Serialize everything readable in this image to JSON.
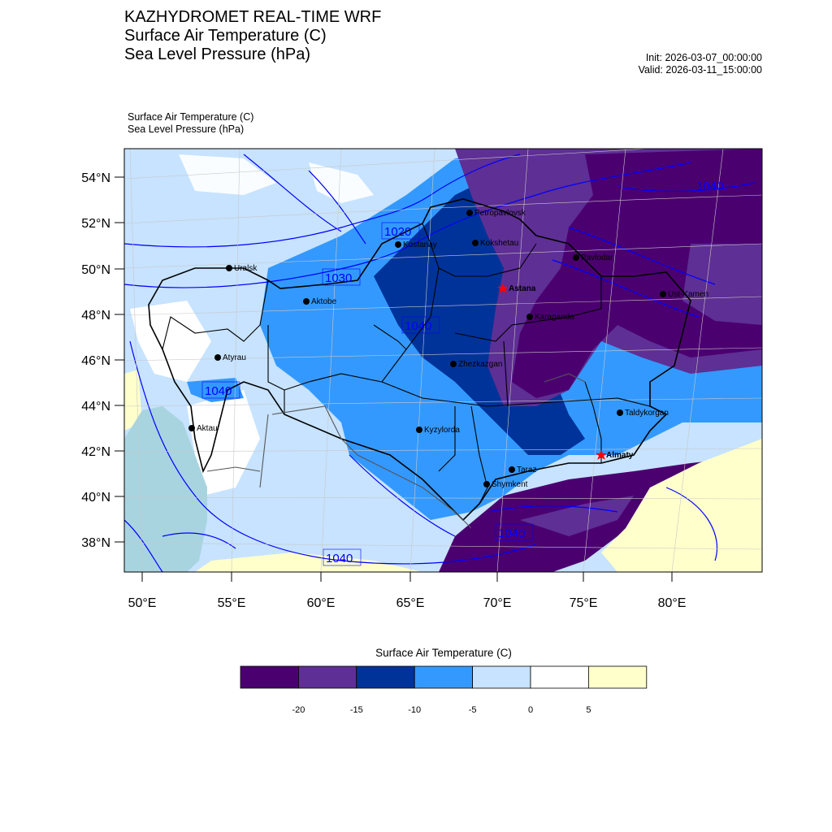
{
  "titles": {
    "line1": "KAZHYDROMET REAL-TIME WRF",
    "line2": "Surface Air Temperature  (C)",
    "line3": "Sea Level Pressure  (hPa)"
  },
  "times": {
    "init": "Init: 2026-03-07_00:00:00",
    "valid": "Valid: 2026-03-11_15:00:00"
  },
  "subtitle": {
    "line1": "Surface Air Temperature   (C)",
    "line2": "Sea Level Pressure   (hPa)"
  },
  "axes": {
    "lat_labels": [
      "54°N",
      "52°N",
      "50°N",
      "48°N",
      "46°N",
      "44°N",
      "42°N",
      "40°N",
      "38°N"
    ],
    "lon_labels": [
      "50°E",
      "55°E",
      "60°E",
      "65°E",
      "70°E",
      "75°E",
      "80°E"
    ]
  },
  "cities": [
    {
      "name": "Petropavlovsk"
    },
    {
      "name": "Kostanay"
    },
    {
      "name": "Kokshetau"
    },
    {
      "name": "Uralsk"
    },
    {
      "name": "Pavlodar"
    },
    {
      "name": "Astana"
    },
    {
      "name": "Aktobe"
    },
    {
      "name": "Ust-Kamen"
    },
    {
      "name": "Karaganda"
    },
    {
      "name": "Atyrau"
    },
    {
      "name": "Zhezkazgan"
    },
    {
      "name": "Aktau"
    },
    {
      "name": "Taldykorgan"
    },
    {
      "name": "Kyzylorda"
    },
    {
      "name": "Almaty"
    },
    {
      "name": "Taraz"
    },
    {
      "name": "Shymkent"
    }
  ],
  "isobar_labels": [
    "1020",
    "1030",
    "1040",
    "1040",
    "1040",
    "1040",
    "1040"
  ],
  "colorbar": {
    "title": "Surface Air Temperature (C)",
    "colors": [
      "#4b0070",
      "#5e2f94",
      "#003399",
      "#3399ff",
      "#c7e3ff",
      "#ffffff",
      "#ffffcc"
    ],
    "ticks": [
      "-20",
      "-15",
      "-10",
      "-5",
      "0",
      "5"
    ]
  },
  "colors": {
    "isobar": "#0000ff",
    "boundary": "#000000",
    "caspian": "#a8d4e0",
    "capital_marker": "#ff0000"
  }
}
